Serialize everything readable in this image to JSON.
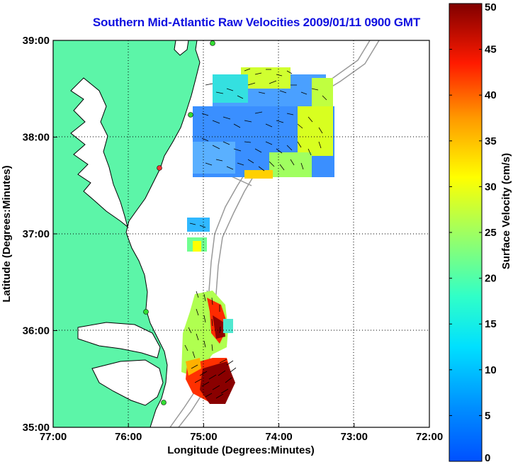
{
  "title": "Southern Mid-Atlantic Raw Velocities 2009/01/11 0900 GMT",
  "x_axis": {
    "label": "Longitude (Degrees:Minutes)",
    "ticks": [
      "77:00",
      "76:00",
      "75:00",
      "74:00",
      "73:00",
      "72:00"
    ]
  },
  "y_axis": {
    "label": "Latitude (Degrees:Minutes)",
    "ticks": [
      "39:00",
      "38:00",
      "37:00",
      "36:00",
      "35:00"
    ]
  },
  "colorbar": {
    "label": "Surface Velocity (cm/s)",
    "ticks": [
      "50",
      "45",
      "40",
      "35",
      "30",
      "25",
      "20",
      "15",
      "10",
      "5",
      "0"
    ],
    "min": 0,
    "max": 50,
    "colormap": "jet"
  },
  "colors": {
    "land": "#5cf5a8",
    "coastline": "#000000",
    "bathymetry": "#999999",
    "title": "#1010e0"
  }
}
